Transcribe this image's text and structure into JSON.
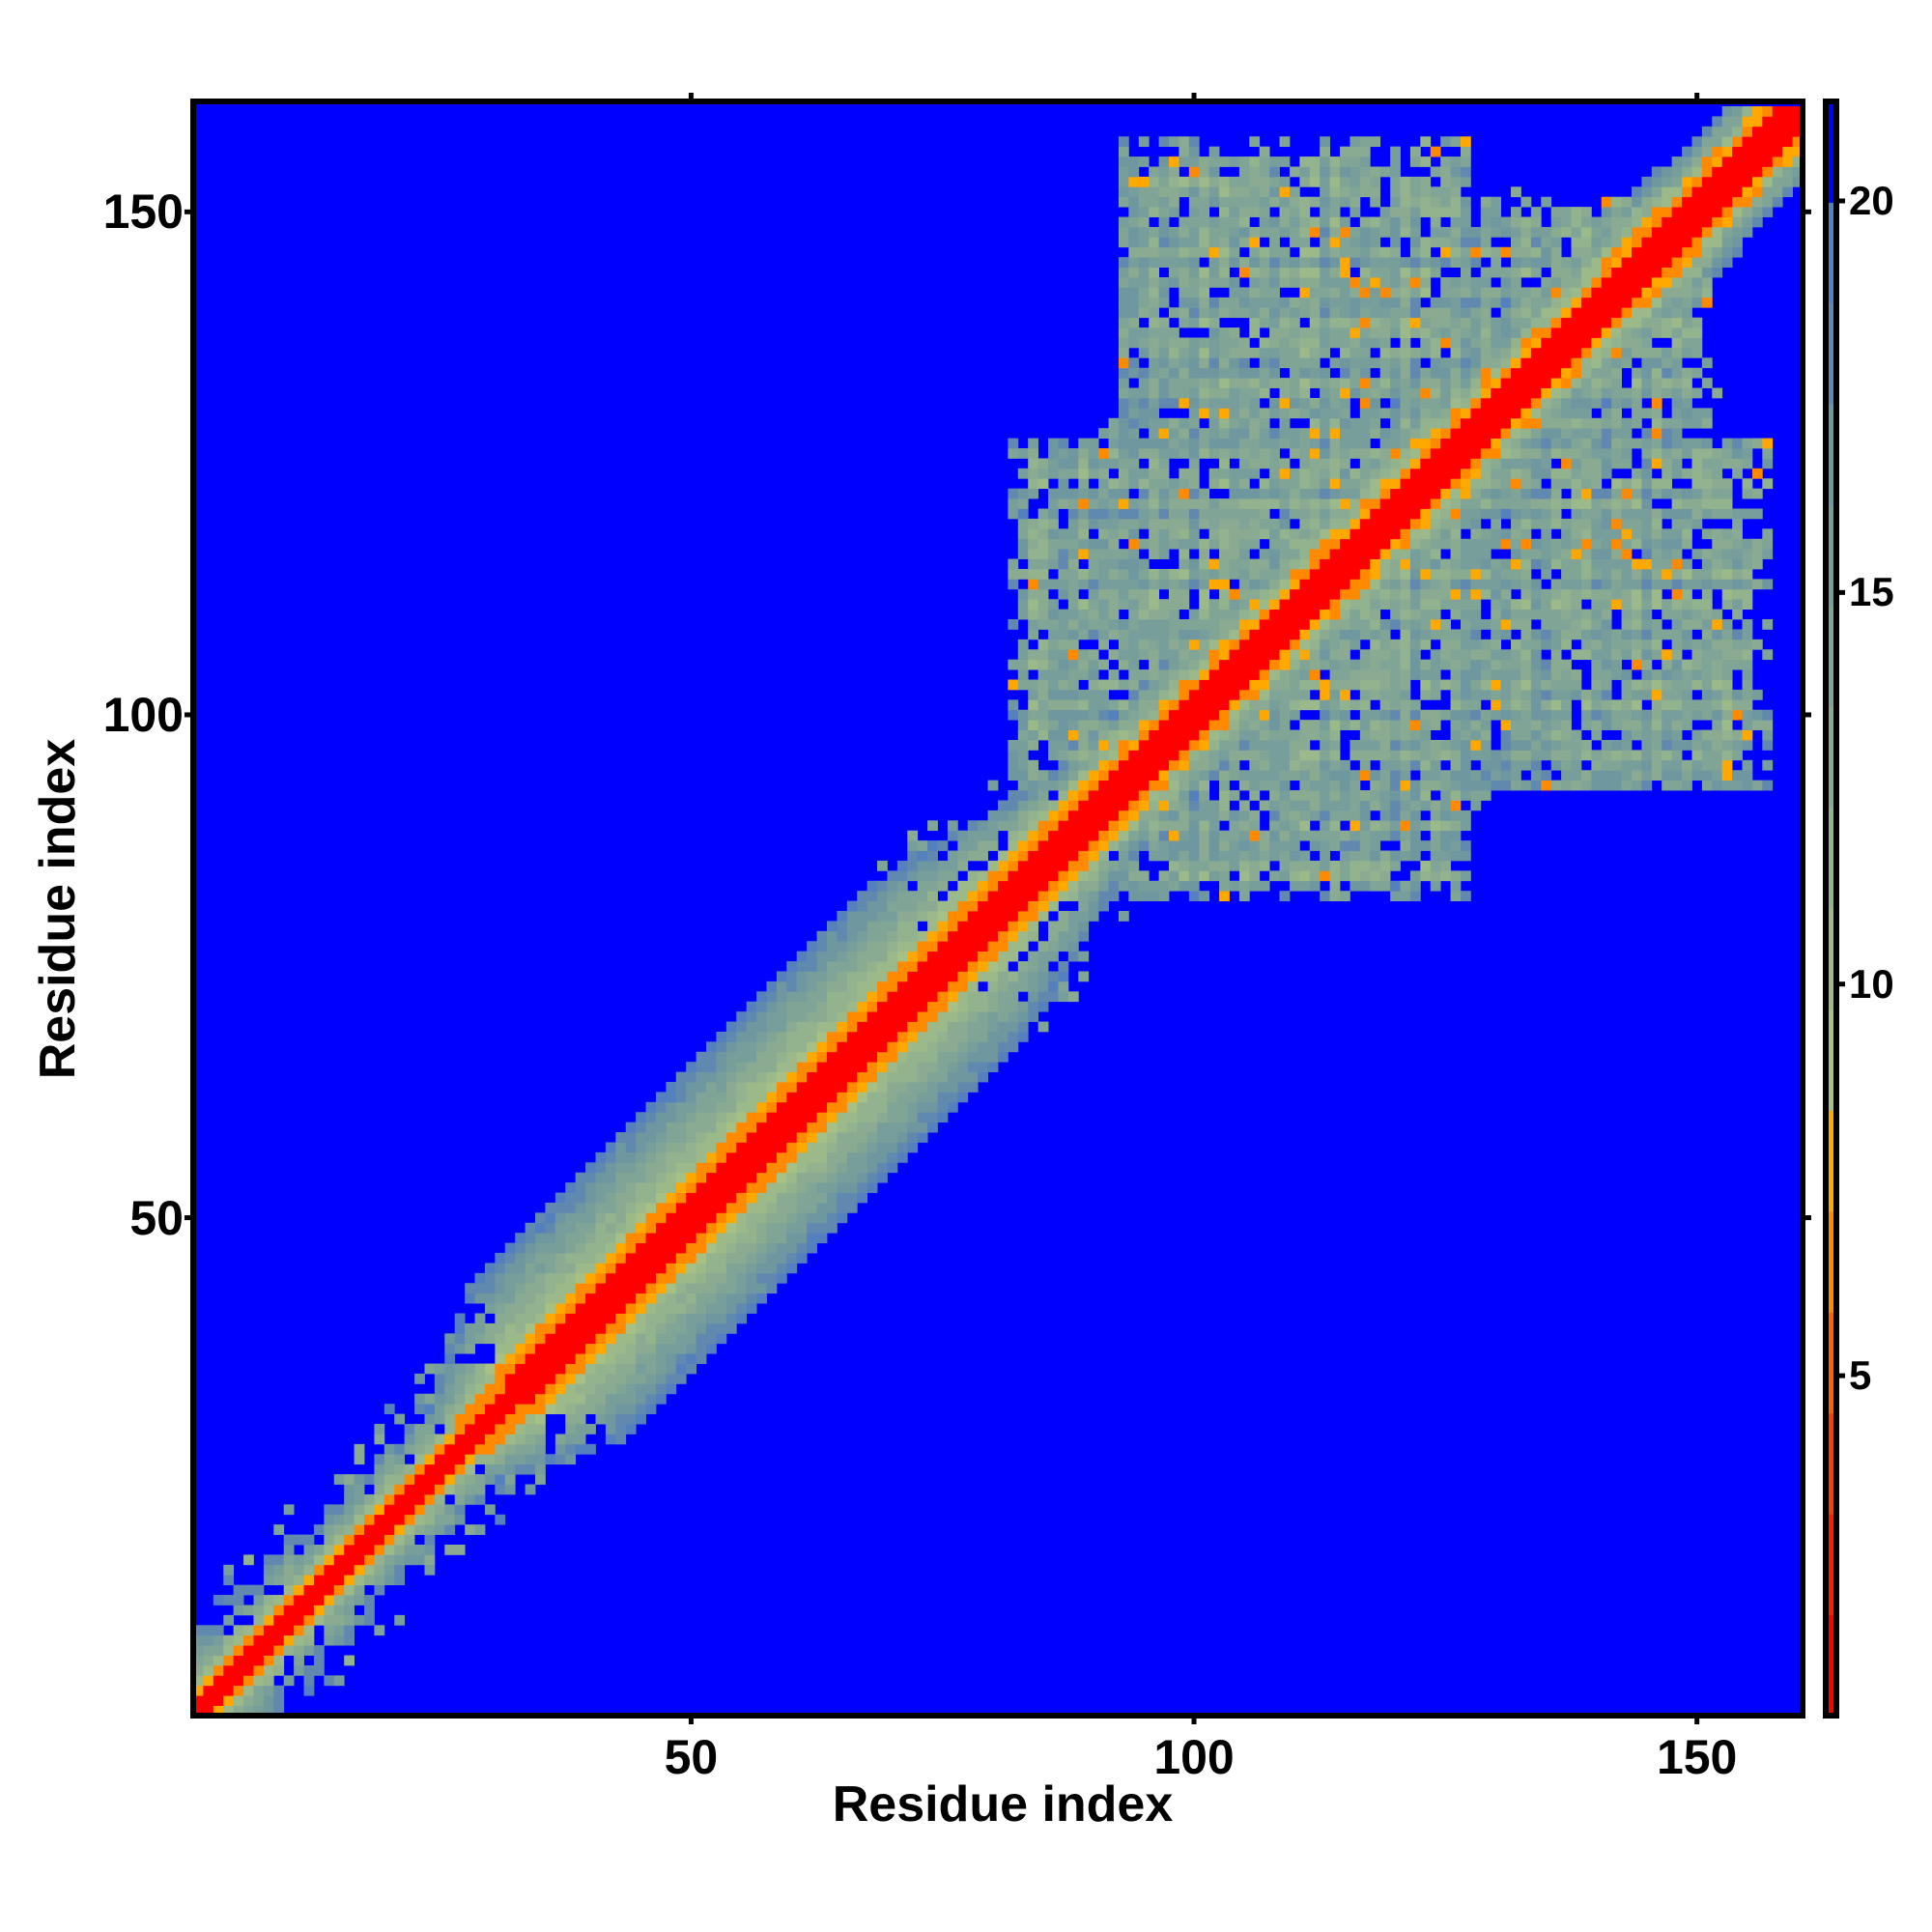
{
  "chart_data": {
    "type": "heatmap",
    "title": "",
    "xlabel": "Residue index",
    "ylabel": "Residue index",
    "n_residues": 160,
    "xlim": [
      0.5,
      160.5
    ],
    "ylim": [
      0.5,
      160.5
    ],
    "x_ticks": [
      50,
      100,
      150
    ],
    "y_ticks": [
      50,
      100,
      150
    ],
    "colorbar": {
      "range": [
        0.66,
        21.27
      ],
      "ticks": [
        5,
        10,
        15,
        20
      ],
      "levels": 16,
      "colors": [
        "#ff0000",
        "#ff1e00",
        "#ff3c00",
        "#ff6000",
        "#ff8a00",
        "#ffa800",
        "#a6c086",
        "#9cb98a",
        "#93b28e",
        "#8aab92",
        "#80a596",
        "#779e9b",
        "#6e97a0",
        "#6189b0",
        "#5580be",
        "#0000ff"
      ]
    },
    "background_value_color": "#0000ff",
    "structure": {
      "diagonal_band": [
        {
          "residues": [
            1,
            30
          ],
          "red_offset": 1,
          "orange_offset": 2,
          "band_offset": 7
        },
        {
          "residues": [
            36,
            76
          ],
          "red_offset": 2,
          "orange_offset": 4,
          "band_offset": 15
        },
        {
          "residues": [
            90,
            160
          ],
          "red_offset": 2,
          "orange_offset": 3,
          "band_offset": 8
        }
      ],
      "compact_domain": {
        "residues": [
          82,
          157
        ],
        "typical_distance": [
          9,
          20
        ]
      }
    }
  }
}
